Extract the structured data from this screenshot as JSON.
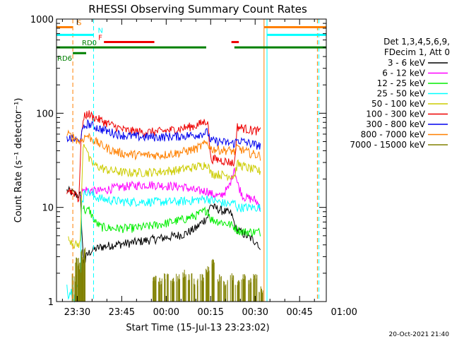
{
  "chart_data": {
    "type": "line",
    "title": "RHESSI Observing Summary Count Rates",
    "xlabel": "Start Time (15-Jul-13 23:23:02)",
    "ylabel": "Count Rate (s⁻¹ detector⁻¹)",
    "y_scale": "log",
    "ylim": [
      1,
      1000
    ],
    "y_ticks": [
      {
        "label": "1",
        "value": 1
      },
      {
        "label": "10",
        "value": 10
      },
      {
        "label": "100",
        "value": 100
      },
      {
        "label": "1000",
        "value": 1000
      }
    ],
    "x_range_minutes": [
      -7,
      84
    ],
    "x_ticks": [
      {
        "label": "23:30",
        "value": 0
      },
      {
        "label": "23:45",
        "value": 15
      },
      {
        "label": "00:00",
        "value": 30
      },
      {
        "label": "00:15",
        "value": 45
      },
      {
        "label": "00:30",
        "value": 60
      },
      {
        "label": "00:45",
        "value": 75
      },
      {
        "label": "01:00",
        "value": 90
      }
    ],
    "legend": {
      "placement": "right",
      "header": [
        "Det 1,3,4,5,6,9,",
        "FDecim 1, Att 0"
      ],
      "entries": [
        {
          "label": "3 - 6 keV",
          "color": "#000000"
        },
        {
          "label": "6 - 12 keV",
          "color": "#ff00ff"
        },
        {
          "label": "12 - 25 keV",
          "color": "#00ee00"
        },
        {
          "label": "25 - 50 keV",
          "color": "#00ffff"
        },
        {
          "label": "50 - 100 keV",
          "color": "#cccc00"
        },
        {
          "label": "100 - 300 keV",
          "color": "#ee0000"
        },
        {
          "label": "300 - 800 keV",
          "color": "#0000ee"
        },
        {
          "label": "800 - 7000 keV",
          "color": "#ff8000"
        },
        {
          "label": "7000 - 15000 keV",
          "color": "#808000"
        }
      ]
    },
    "flags": [
      {
        "label": "S",
        "color": "#ff8000",
        "y": 820,
        "segments": [
          [
            -7,
            -1.5
          ],
          [
            63,
            84
          ]
        ]
      },
      {
        "label": "N",
        "color": "#00ffff",
        "y": 680,
        "segments": [
          [
            -7,
            5.5
          ],
          [
            64,
            84
          ]
        ]
      },
      {
        "label": "F",
        "color": "#ee0000",
        "y": 570,
        "segments": [
          [
            9,
            26
          ],
          [
            52,
            54.5
          ]
        ]
      },
      {
        "label": "RD0",
        "color": "#008000",
        "y": 500,
        "segments": [
          [
            -7,
            43.5
          ],
          [
            53,
            84
          ]
        ]
      },
      {
        "label": "RD6",
        "color": "#008000",
        "y": 435,
        "segments": [
          [
            -1.5,
            3
          ]
        ]
      }
    ],
    "flag_lines": [
      {
        "name": "saa-start",
        "x": -1.5,
        "color": "#ff8000",
        "dashed": true
      },
      {
        "name": "night-start",
        "x": 5.5,
        "color": "#00ffff",
        "dashed": true
      },
      {
        "name": "saa-end",
        "x": 63,
        "color": "#ff8000",
        "dashed": false
      },
      {
        "name": "night-end",
        "x": 64,
        "color": "#00ffff",
        "dashed": false
      },
      {
        "name": "end-saa",
        "x": 81,
        "color": "#ff8000",
        "dashed": true
      },
      {
        "name": "end-night",
        "x": 81.5,
        "color": "#00ffff",
        "dashed": true
      }
    ],
    "series": [
      {
        "color": "#000000",
        "x": [
          -3.5,
          -3,
          -2,
          -1,
          0,
          1,
          2,
          2.5,
          3,
          4,
          5,
          6,
          8,
          12,
          18,
          24,
          30,
          36,
          40,
          44,
          45,
          46,
          50,
          52,
          53.5,
          55,
          58,
          61,
          62
        ],
        "y": [
          15,
          15,
          14.5,
          14,
          13.5,
          13.5,
          3,
          2.5,
          3,
          3.3,
          3.5,
          3.6,
          3.8,
          4,
          4.2,
          4.5,
          4.8,
          5.2,
          6,
          8,
          11,
          10,
          9,
          8.5,
          6,
          5.5,
          4.8,
          4.2,
          3
        ]
      },
      {
        "color": "#ff00ff",
        "x": [
          1,
          2,
          3,
          5,
          8,
          12,
          18,
          24,
          30,
          36,
          40,
          44,
          45,
          48,
          51,
          52,
          53,
          54,
          56,
          60,
          62
        ],
        "y": [
          14,
          15,
          15.5,
          15,
          15,
          16,
          17,
          17.5,
          17,
          16.5,
          15,
          15,
          14,
          13,
          16,
          20,
          27,
          18,
          13,
          12,
          10
        ]
      },
      {
        "color": "#00ee00",
        "x": [
          2,
          3,
          4,
          6,
          8,
          12,
          18,
          24,
          30,
          36,
          40,
          44,
          45,
          50,
          52,
          53,
          54,
          56,
          60,
          62
        ],
        "y": [
          10,
          9,
          9.5,
          7,
          6.2,
          6,
          6,
          6.3,
          6.8,
          7.5,
          8.2,
          9.5,
          7.5,
          6.8,
          6.5,
          6.2,
          5.8,
          5.5,
          5.5,
          5.5
        ]
      },
      {
        "color": "#00ffff",
        "x": [
          -3.5,
          -3,
          -2,
          -1,
          0,
          1,
          1.5,
          2,
          2.5,
          3,
          4,
          6,
          10,
          16,
          22,
          28,
          34,
          40,
          44,
          45,
          50,
          52,
          53,
          54,
          56,
          60,
          62
        ],
        "y": [
          1.5,
          1.2,
          1.3,
          1.1,
          1.4,
          1.2,
          12,
          12.5,
          14,
          15,
          14.5,
          13,
          12,
          11.5,
          11.5,
          11.5,
          11.5,
          12,
          12.5,
          12,
          11,
          10.8,
          11.5,
          10,
          10,
          10,
          10
        ]
      },
      {
        "color": "#cccc00",
        "x": [
          -3,
          -2,
          -1,
          0,
          1,
          2,
          3,
          4,
          6,
          10,
          16,
          22,
          28,
          34,
          40,
          44,
          45,
          50,
          53,
          54,
          58,
          62
        ],
        "y": [
          4.5,
          4.5,
          4,
          4,
          4.2,
          48,
          45,
          32,
          28,
          25,
          23.5,
          23.5,
          24,
          25,
          27,
          29,
          23,
          22,
          21.5,
          29,
          26,
          24
        ]
      },
      {
        "color": "#ee0000",
        "x": [
          -3.5,
          -2.5,
          -1.5,
          -0.5,
          0.5,
          1.5,
          2.5,
          3.5,
          5,
          8,
          12,
          16,
          22,
          28,
          34,
          40,
          44,
          45,
          48,
          52,
          53,
          54,
          58,
          62
        ],
        "y": [
          15,
          15.5,
          14,
          14.5,
          12,
          70,
          92,
          100,
          93,
          84,
          74,
          66,
          63,
          64,
          68,
          74,
          84,
          33,
          32,
          30,
          29,
          72,
          67,
          64
        ]
      },
      {
        "color": "#0000ee",
        "x": [
          -3.5,
          -2.5,
          -1.5,
          -0.5,
          0.5,
          1.5,
          2.5,
          3.5,
          5,
          8,
          12,
          16,
          22,
          28,
          34,
          40,
          44,
          45,
          48,
          52,
          53,
          54,
          58,
          62
        ],
        "y": [
          55,
          54,
          53,
          52,
          50,
          60,
          72,
          78,
          74,
          68,
          62,
          58,
          56,
          56,
          57,
          59,
          63,
          51,
          50,
          48,
          48,
          52,
          48,
          45
        ]
      },
      {
        "color": "#ff8000",
        "x": [
          -3.5,
          -2.5,
          -1.5,
          -0.5,
          0.5,
          1.5,
          2.5,
          3.5,
          5,
          8,
          12,
          16,
          22,
          28,
          34,
          40,
          44,
          45,
          48,
          52,
          53,
          54,
          58,
          62
        ],
        "y": [
          60,
          58,
          56,
          54,
          50,
          52,
          56,
          58,
          53,
          46,
          40,
          37,
          36,
          36,
          38,
          42,
          49,
          42,
          41,
          40,
          39,
          43,
          38,
          35
        ]
      },
      {
        "color": "#808000",
        "type": "hits",
        "x": [
          -1,
          0,
          1,
          1.5,
          2,
          26,
          28,
          30,
          32,
          34,
          36,
          38,
          40,
          42,
          44,
          46,
          48,
          50,
          52,
          54,
          56,
          58,
          60,
          62
        ],
        "y": [
          2,
          3,
          2.5,
          3,
          4,
          2,
          1.8,
          2,
          1.8,
          2,
          2.2,
          2,
          1.8,
          2,
          2.5,
          3,
          2,
          1.8,
          2,
          1.8,
          2,
          1.8,
          2,
          1.5
        ]
      }
    ]
  },
  "footer": {
    "date_stamp": "20-Oct-2021 21:40"
  }
}
